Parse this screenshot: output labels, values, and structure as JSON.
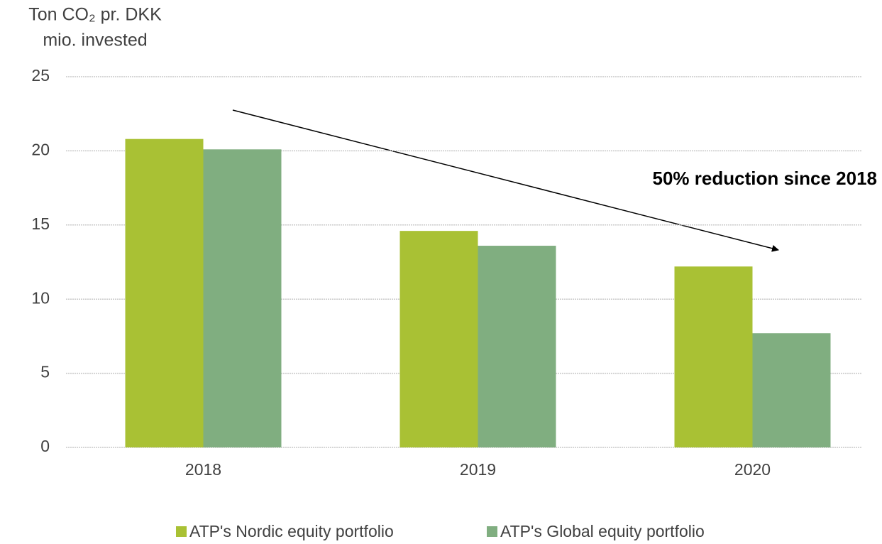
{
  "chart_data": {
    "type": "bar",
    "ylabel": [
      "Ton CO₂ pr. DKK",
      "mio. invested"
    ],
    "annotation": "50% reduction since 2018",
    "categories": [
      "2018",
      "2019",
      "2020"
    ],
    "series": [
      {
        "name": "ATP's Nordic equity portfolio",
        "color": "#a9c134",
        "values": [
          20.8,
          14.6,
          12.2
        ]
      },
      {
        "name": "ATP's Global equity portfolio",
        "color": "#80ae80",
        "values": [
          20.1,
          13.6,
          7.7
        ]
      }
    ],
    "ylim": [
      0,
      25
    ],
    "yticks": [
      0,
      5,
      10,
      15,
      20,
      25
    ],
    "grid": true,
    "legend": "bottom"
  }
}
